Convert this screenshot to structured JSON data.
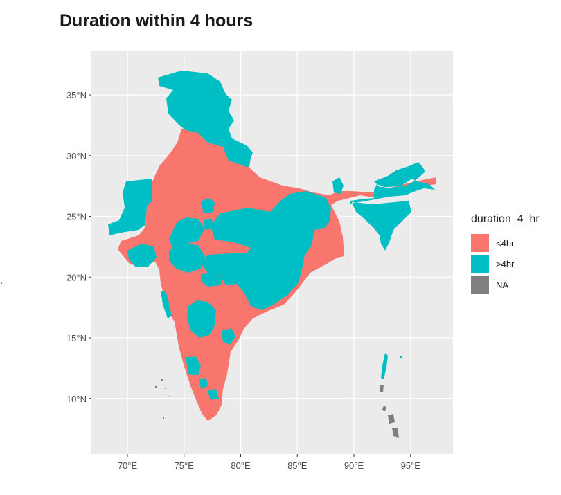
{
  "title": "Duration within 4 hours",
  "colors": {
    "lt4hr": "#F8766D",
    "gt4hr": "#00BFC4",
    "na": "#7F7F7F",
    "panel": "#EBEBEB",
    "grid": "#FFFFFF"
  },
  "axes": {
    "x_ticks": [
      {
        "value": 70,
        "label": "70°E"
      },
      {
        "value": 75,
        "label": "75°E"
      },
      {
        "value": 80,
        "label": "80°E"
      },
      {
        "value": 85,
        "label": "85°E"
      },
      {
        "value": 90,
        "label": "90°E"
      },
      {
        "value": 95,
        "label": "95°E"
      }
    ],
    "y_ticks": [
      {
        "value": 35,
        "label": "35°N"
      },
      {
        "value": 30,
        "label": "30°N"
      },
      {
        "value": 25,
        "label": "25°N"
      },
      {
        "value": 20,
        "label": "20°N"
      },
      {
        "value": 15,
        "label": "15°N"
      },
      {
        "value": 10,
        "label": "10°N"
      }
    ]
  },
  "legend": {
    "title": "duration_4_hr",
    "items": [
      {
        "label": "<4hr",
        "color": "#F8766D"
      },
      {
        "label": ">4hr",
        "color": "#00BFC4"
      },
      {
        "label": "NA",
        "color": "#7F7F7F"
      }
    ]
  }
}
